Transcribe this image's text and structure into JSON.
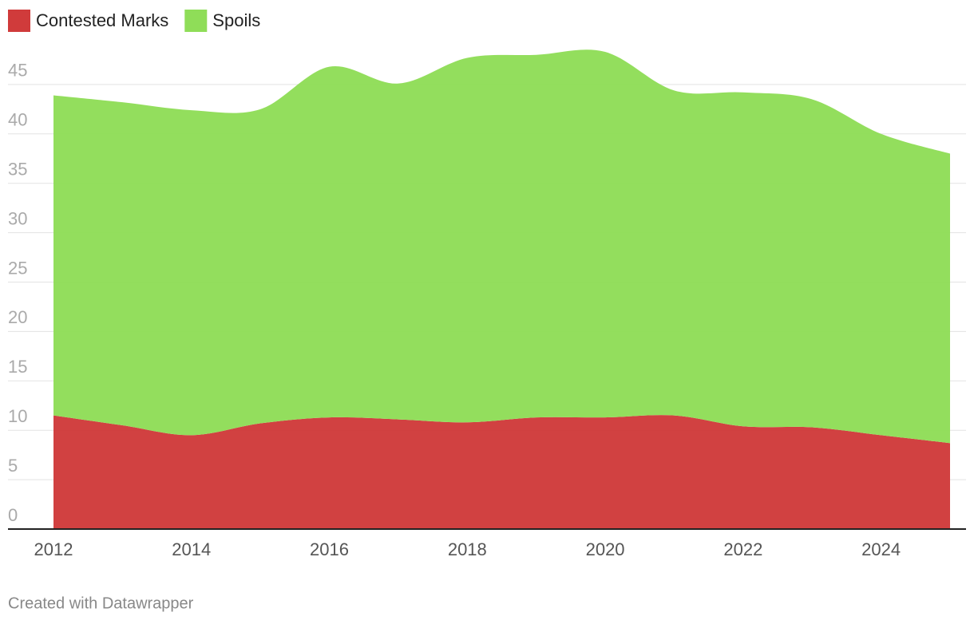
{
  "chart_data": {
    "type": "area",
    "stacked": true,
    "x": [
      2012,
      2013,
      2014,
      2015,
      2016,
      2017,
      2018,
      2019,
      2020,
      2021,
      2022,
      2023,
      2024,
      2025
    ],
    "series": [
      {
        "name": "Contested Marks",
        "color": "#d03b3b",
        "values": [
          11.5,
          10.5,
          9.5,
          10.7,
          11.3,
          11.1,
          10.8,
          11.3,
          11.3,
          11.5,
          10.4,
          10.3,
          9.5,
          8.7
        ]
      },
      {
        "name": "Spoils",
        "color": "#8fdd58",
        "values": [
          32.4,
          32.7,
          32.9,
          31.8,
          35.5,
          34.0,
          36.9,
          36.7,
          37.0,
          32.9,
          33.8,
          33.2,
          30.5,
          29.3
        ]
      }
    ],
    "xlim": [
      2012,
      2025
    ],
    "xticks": [
      2012,
      2014,
      2016,
      2018,
      2020,
      2022,
      2024
    ],
    "ylim": [
      0,
      50
    ],
    "yticks": [
      0,
      5,
      10,
      15,
      20,
      25,
      30,
      35,
      40,
      45
    ],
    "grid": true,
    "legend": "top-left",
    "footer": "Created with Datawrapper"
  }
}
